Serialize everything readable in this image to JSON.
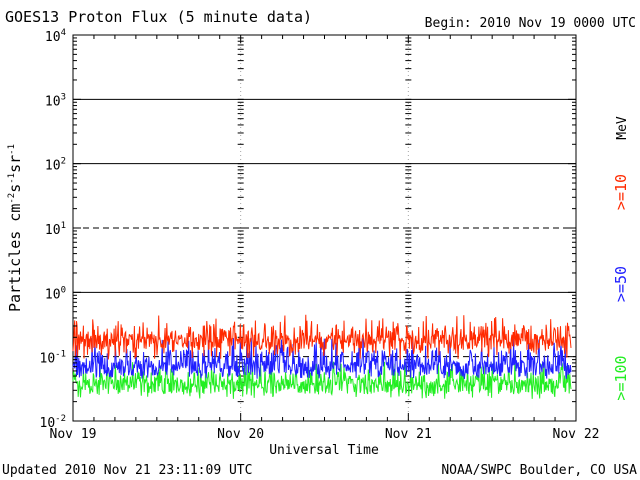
{
  "header": {
    "title": "GOES13 Proton Flux (5 minute data)",
    "begin": "Begin: 2010 Nov 19 0000 UTC"
  },
  "footer": {
    "updated": "Updated 2010 Nov 21 23:11:09 UTC",
    "credit": "NOAA/SWPC Boulder, CO USA"
  },
  "legend": {
    "unit": "MeV",
    "entries": [
      {
        "label": ">=10",
        "color": "#ff2a00"
      },
      {
        "label": ">=50",
        "color": "#2020ff"
      },
      {
        "label": ">=100",
        "color": "#22ee22"
      }
    ]
  },
  "chart_data": {
    "type": "line",
    "title": "GOES13 Proton Flux (5 minute data)",
    "xlabel": "Universal Time",
    "ylabel": "Particles cm-2s-1sr-1",
    "yscale": "log",
    "ylim": [
      0.01,
      10000
    ],
    "y_ticks": [
      {
        "base": "10",
        "exp": "4"
      },
      {
        "base": "10",
        "exp": "3"
      },
      {
        "base": "10",
        "exp": "2"
      },
      {
        "base": "10",
        "exp": "1"
      },
      {
        "base": "10",
        "exp": "0"
      },
      {
        "base": "10",
        "exp": "-1"
      },
      {
        "base": "10",
        "exp": "-2"
      }
    ],
    "x_ticks": [
      "Nov 19",
      "Nov 20",
      "Nov 21",
      "Nov 22"
    ],
    "x_range_days": [
      0,
      3
    ],
    "series": [
      {
        "name": ">=10 MeV",
        "color": "#ff2a00",
        "typical": 0.17,
        "min": 0.09,
        "max": 0.45
      },
      {
        "name": ">=50 MeV",
        "color": "#2020ff",
        "typical": 0.065,
        "min": 0.045,
        "max": 0.2
      },
      {
        "name": ">=100 MeV",
        "color": "#22ee22",
        "typical": 0.035,
        "min": 0.022,
        "max": 0.085
      }
    ],
    "data_end_day": 2.97
  }
}
